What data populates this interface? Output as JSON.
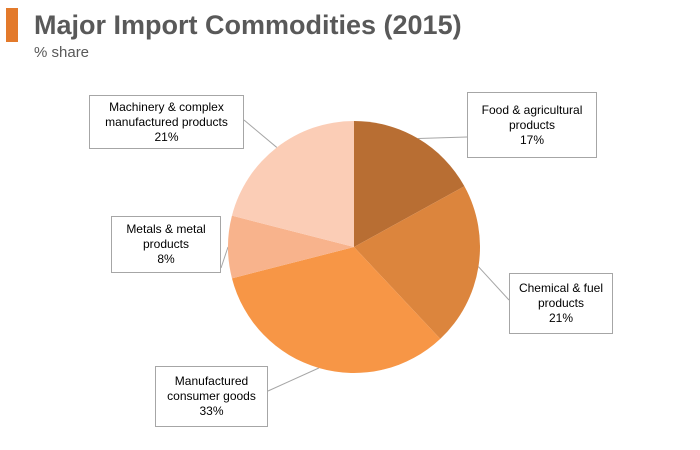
{
  "header": {
    "title": "Major Import Commodities (2015)",
    "subtitle": "% share",
    "accent_color": "#e37a2b"
  },
  "chart_data": {
    "type": "pie",
    "title": "Major Import Commodities (2015)",
    "subtitle": "% share",
    "unit": "%",
    "start": "12 o'clock",
    "direction": "clockwise",
    "slices": [
      {
        "key": "food",
        "label": "Food & agricultural products",
        "line1": "Food & agricultural",
        "line2": "products",
        "value": 17,
        "value_label": "17%",
        "color": "#b86e33"
      },
      {
        "key": "chemical",
        "label": "Chemical & fuel products",
        "line1": "Chemical & fuel",
        "line2": "products",
        "value": 21,
        "value_label": "21%",
        "color": "#dc853d"
      },
      {
        "key": "consumer",
        "label": "Manufactured consumer goods",
        "line1": "Manufactured",
        "line2": "consumer goods",
        "value": 33,
        "value_label": "33%",
        "color": "#f79646"
      },
      {
        "key": "metals",
        "label": "Metals & metal products",
        "line1": "Metals & metal",
        "line2": "products",
        "value": 8,
        "value_label": "8%",
        "color": "#f8b38c"
      },
      {
        "key": "machinery",
        "label": "Machinery & complex manufactured products",
        "line1": "Machinery & complex",
        "line2": "manufactured products",
        "value": 21,
        "value_label": "21%",
        "color": "#fbcdb6"
      }
    ]
  }
}
